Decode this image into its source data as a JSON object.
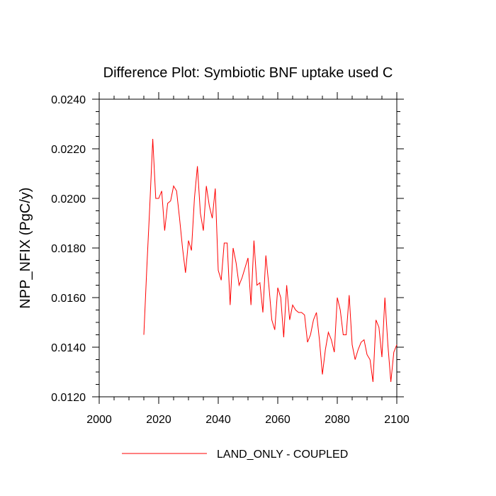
{
  "chart_data": {
    "type": "line",
    "title": "Difference Plot: Symbiotic BNF uptake used C",
    "xlabel": "",
    "ylabel": "NPP_NFIX  (PgC/y)",
    "xlim": [
      2000,
      2100
    ],
    "ylim": [
      0.012,
      0.024
    ],
    "x_ticks": [
      2000,
      2020,
      2040,
      2060,
      2080,
      2100
    ],
    "x_tick_labels": [
      "2000",
      "2020",
      "2040",
      "2060",
      "2080",
      "2100"
    ],
    "y_ticks": [
      0.012,
      0.014,
      0.016,
      0.018,
      0.02,
      0.022,
      0.024
    ],
    "y_tick_labels": [
      "0.0120",
      "0.0140",
      "0.0160",
      "0.0180",
      "0.0200",
      "0.0220",
      "0.0240"
    ],
    "grid": false,
    "legend_position": "bottom-center",
    "series": [
      {
        "name": "LAND_ONLY - COUPLED",
        "color": "#ff0000",
        "x": [
          2015,
          2016,
          2017,
          2018,
          2019,
          2020,
          2021,
          2022,
          2023,
          2024,
          2025,
          2026,
          2027,
          2028,
          2029,
          2030,
          2031,
          2032,
          2033,
          2034,
          2035,
          2036,
          2037,
          2038,
          2039,
          2040,
          2041,
          2042,
          2043,
          2044,
          2045,
          2046,
          2047,
          2048,
          2049,
          2050,
          2051,
          2052,
          2053,
          2054,
          2055,
          2056,
          2057,
          2058,
          2059,
          2060,
          2061,
          2062,
          2063,
          2064,
          2065,
          2066,
          2067,
          2068,
          2069,
          2070,
          2071,
          2072,
          2073,
          2074,
          2075,
          2076,
          2077,
          2078,
          2079,
          2080,
          2081,
          2082,
          2083,
          2084,
          2085,
          2086,
          2087,
          2088,
          2089,
          2090,
          2091,
          2092,
          2093,
          2094,
          2095,
          2096,
          2097,
          2098,
          2099,
          2100
        ],
        "values": [
          0.0145,
          0.0172,
          0.0197,
          0.0224,
          0.02,
          0.02,
          0.0203,
          0.0187,
          0.0198,
          0.0199,
          0.0205,
          0.0203,
          0.0192,
          0.018,
          0.017,
          0.0183,
          0.0179,
          0.02,
          0.0213,
          0.0194,
          0.0187,
          0.0205,
          0.0197,
          0.0192,
          0.0204,
          0.0171,
          0.0167,
          0.0182,
          0.0182,
          0.0157,
          0.018,
          0.0174,
          0.0165,
          0.0168,
          0.0172,
          0.0176,
          0.0157,
          0.0183,
          0.0165,
          0.0166,
          0.0154,
          0.0177,
          0.0165,
          0.0151,
          0.0147,
          0.0164,
          0.016,
          0.0144,
          0.0165,
          0.0151,
          0.0157,
          0.0155,
          0.0154,
          0.0154,
          0.0153,
          0.0142,
          0.0145,
          0.0151,
          0.0154,
          0.0143,
          0.0129,
          0.0139,
          0.0146,
          0.0143,
          0.0138,
          0.016,
          0.0155,
          0.0145,
          0.0145,
          0.0161,
          0.0141,
          0.0135,
          0.0139,
          0.0142,
          0.0143,
          0.0137,
          0.0135,
          0.0126,
          0.0151,
          0.0148,
          0.0136,
          0.016,
          0.0141,
          0.0126,
          0.0138,
          0.0141
        ]
      }
    ]
  }
}
